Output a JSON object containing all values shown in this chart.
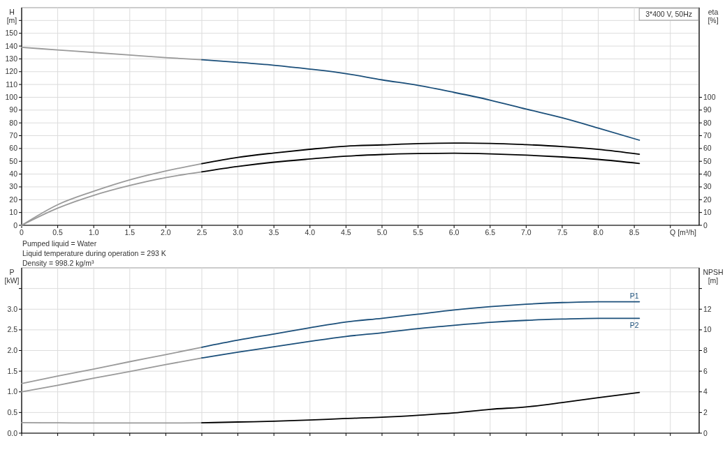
{
  "chart_data": [
    {
      "type": "line",
      "title": "3*400 V, 50Hz",
      "xlabel": "Q [m³/h]",
      "ylabel": "H [m]",
      "y2label": "eta [%]",
      "annotations": [
        "Pumped liquid = Water",
        "Liquid temperature during operation = 293 K",
        "Density = 998.2 kg/m³"
      ],
      "xlim": [
        0,
        9.4
      ],
      "xticks": [
        0,
        0.5,
        {
          "value": 1,
          "label": "1.0"
        },
        1.5,
        {
          "value": 2,
          "label": "2.0"
        },
        2.5,
        {
          "value": 3,
          "label": "3.0"
        },
        3.5,
        {
          "value": 4,
          "label": "4.0"
        },
        4.5,
        {
          "value": 5,
          "label": "5.0"
        },
        5.5,
        {
          "value": 6,
          "label": "6.0"
        },
        6.5,
        {
          "value": 7,
          "label": "7.0"
        },
        7.5,
        {
          "value": 8,
          "label": "8.0"
        },
        8.5,
        {
          "value": 9,
          "label": null
        }
      ],
      "ylim": [
        0,
        170
      ],
      "yticks": [
        0,
        10,
        20,
        30,
        40,
        50,
        60,
        70,
        80,
        90,
        100,
        110,
        120,
        130,
        140,
        150,
        {
          "value": 160,
          "label": null
        }
      ],
      "y2lim": [
        0,
        170
      ],
      "y2ticks": [
        0,
        10,
        20,
        30,
        40,
        50,
        60,
        70,
        80,
        90,
        100
      ],
      "grid": true,
      "marker": "none",
      "line_style": "solid",
      "series": [
        {
          "color": "#9a9a9a",
          "x": [
            0,
            0.5,
            1,
            1.5,
            2,
            2.5
          ],
          "values": [
            139,
            137,
            135,
            133,
            131,
            129.3
          ]
        },
        {
          "color": "#1b4f7a",
          "x": [
            2.5,
            3,
            3.5,
            4,
            4.5,
            5,
            5.5,
            6,
            6.5,
            7,
            7.5,
            8,
            8.57
          ],
          "values": [
            129.3,
            127.3,
            125,
            122,
            118.5,
            113.6,
            109.3,
            103.8,
            97.8,
            90.8,
            84,
            76,
            66.5
          ]
        },
        {
          "color": "#9a9a9a",
          "axis": "y2",
          "x": [
            0,
            0.5,
            1,
            1.5,
            2,
            2.5
          ],
          "values": [
            0,
            16.1,
            26.6,
            35.5,
            42.4,
            48.2
          ]
        },
        {
          "color": "#000000",
          "axis": "y2",
          "x": [
            2.5,
            3,
            3.5,
            4,
            4.5,
            5,
            5.5,
            6,
            6.5,
            7,
            7.5,
            8,
            8.57
          ],
          "values": [
            48.2,
            53.1,
            56.5,
            59.4,
            61.8,
            62.8,
            63.8,
            64.2,
            64,
            63,
            61.5,
            59.3,
            55.5
          ]
        },
        {
          "color": "#9a9a9a",
          "axis": "y2",
          "x": [
            0,
            0.5,
            1,
            1.5,
            2,
            2.5
          ],
          "values": [
            0,
            13.4,
            23.4,
            31.1,
            37.3,
            41.8
          ]
        },
        {
          "color": "#000000",
          "axis": "y2",
          "x": [
            2.5,
            3,
            3.5,
            4,
            4.5,
            5,
            5.5,
            6,
            6.5,
            7,
            7.5,
            8,
            8.57
          ],
          "values": [
            41.8,
            46,
            49.3,
            51.8,
            54,
            55.3,
            56,
            56.3,
            55.8,
            54.8,
            53.4,
            51.5,
            48.3
          ]
        }
      ]
    },
    {
      "type": "line",
      "ylabel": "P [kW]",
      "y2label": "NPSH [m]",
      "tick_labels": "y",
      "annotations": [
        {
          "text": "P1",
          "x": 8.5,
          "y": 3.18
        },
        {
          "text": "P2",
          "x": 8.5,
          "y": 2.78
        }
      ],
      "xlim": [
        0,
        9.4
      ],
      "xticks": [
        0,
        0.5,
        1,
        1.5,
        2,
        2.5,
        3,
        3.5,
        4,
        4.5,
        5,
        5.5,
        6,
        6.5,
        7,
        7.5,
        8,
        8.5,
        9
      ],
      "ylim": [
        0,
        4
      ],
      "yticks": [
        {
          "value": 0,
          "label": "0.0"
        },
        0.5,
        {
          "value": 1,
          "label": "1.0"
        },
        1.5,
        {
          "value": 2,
          "label": "2.0"
        },
        2.5,
        {
          "value": 3,
          "label": "3.0"
        },
        {
          "value": 3.5,
          "label": null
        }
      ],
      "y2lim": [
        0,
        16
      ],
      "y2ticks": [
        0,
        2,
        4,
        6,
        8,
        10,
        12,
        {
          "value": 14,
          "label": null
        }
      ],
      "grid": true,
      "marker": "none",
      "line_style": "solid",
      "series": [
        {
          "color": "#9a9a9a",
          "x": [
            0,
            0.5,
            1,
            1.5,
            2,
            2.5
          ],
          "values": [
            1.2,
            1.38,
            1.55,
            1.73,
            1.9,
            2.08
          ]
        },
        {
          "color": "#1b4f7a",
          "x": [
            2.5,
            3,
            3.5,
            4,
            4.5,
            5,
            5.5,
            6,
            6.5,
            7,
            7.5,
            8,
            8.57
          ],
          "values": [
            2.08,
            2.25,
            2.4,
            2.55,
            2.69,
            2.78,
            2.88,
            2.98,
            3.06,
            3.12,
            3.16,
            3.18,
            3.18
          ]
        },
        {
          "color": "#9a9a9a",
          "x": [
            0,
            0.5,
            1,
            1.5,
            2,
            2.5
          ],
          "values": [
            1,
            1.16,
            1.33,
            1.49,
            1.66,
            1.82
          ]
        },
        {
          "color": "#1b4f7a",
          "x": [
            2.5,
            3,
            3.5,
            4,
            4.5,
            5,
            5.5,
            6,
            6.5,
            7,
            7.5,
            8,
            8.57
          ],
          "values": [
            1.82,
            1.96,
            2.09,
            2.22,
            2.34,
            2.43,
            2.53,
            2.61,
            2.68,
            2.73,
            2.76,
            2.78,
            2.78
          ]
        },
        {
          "color": "#9a9a9a",
          "axis": "y2",
          "x": [
            0,
            0.5,
            1,
            1.5,
            2,
            2.5
          ],
          "values": [
            1.02,
            1,
            0.99,
            0.99,
            0.99,
            1
          ]
        },
        {
          "color": "#000000",
          "axis": "y2",
          "x": [
            2.5,
            3,
            3.5,
            4,
            4.5,
            5,
            5.5,
            6,
            6.5,
            7,
            7.5,
            8,
            8.57
          ],
          "values": [
            1,
            1.08,
            1.15,
            1.27,
            1.42,
            1.54,
            1.73,
            1.96,
            2.31,
            2.54,
            2.96,
            3.43,
            3.94
          ]
        }
      ]
    }
  ]
}
